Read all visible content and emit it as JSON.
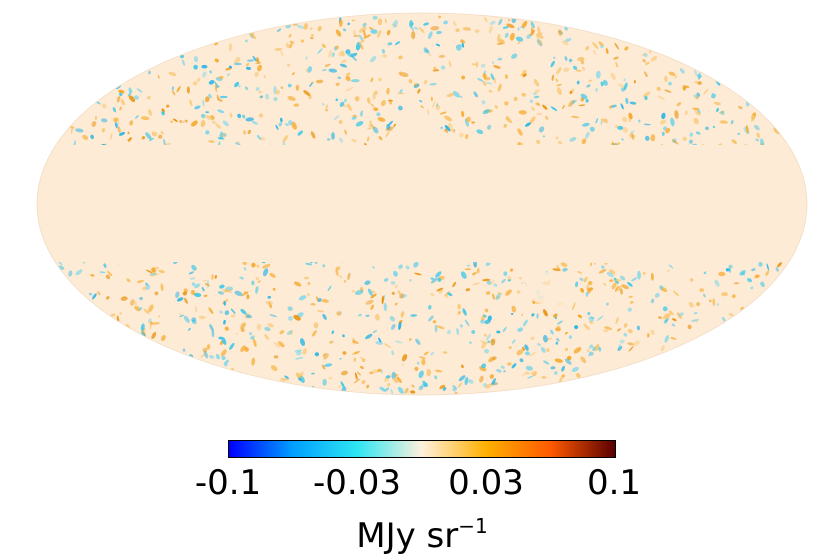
{
  "map": {
    "projection": "mollweide",
    "background_color": "#fdebd5"
  },
  "colorbar": {
    "min": -0.1,
    "max": 0.1,
    "colors": [
      "#0000ff",
      "#00a0ff",
      "#2ee6f2",
      "#fff0dc",
      "#ffb000",
      "#ff5a00",
      "#5a0000"
    ],
    "tick_labels": [
      "-0.1",
      "-0.03",
      "0.03",
      "0.1"
    ],
    "unit_base": "MJy sr",
    "unit_exponent": "−1"
  }
}
